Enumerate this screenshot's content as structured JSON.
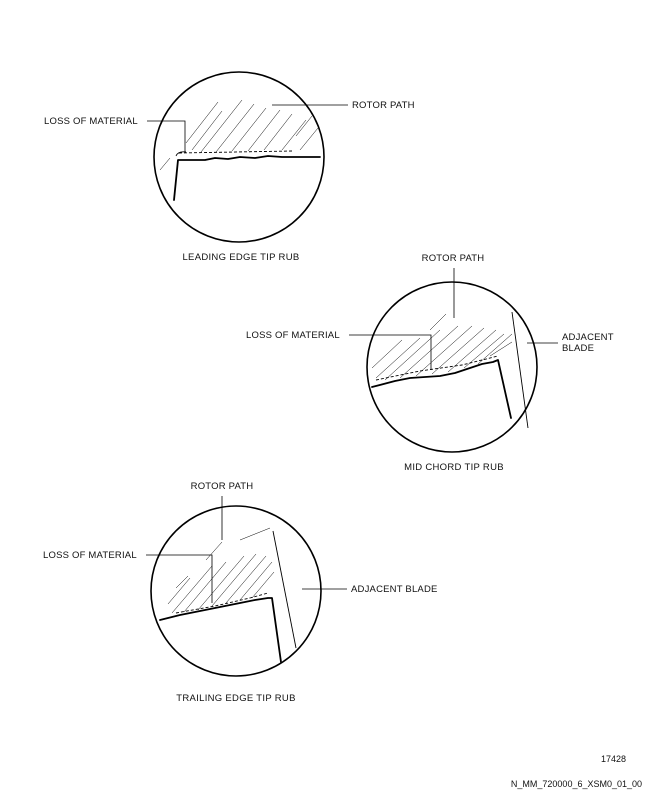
{
  "details": [
    {
      "caption": "LEADING EDGE TIP RUB",
      "labels": {
        "rotor_path": "ROTOR PATH",
        "loss_of_material": "LOSS OF MATERIAL"
      }
    },
    {
      "caption": "MID CHORD TIP RUB",
      "labels": {
        "rotor_path": "ROTOR PATH",
        "loss_of_material": "LOSS OF MATERIAL",
        "adjacent_blade_line1": "ADJACENT",
        "adjacent_blade_line2": "BLADE"
      }
    },
    {
      "caption": "TRAILING EDGE TIP RUB",
      "labels": {
        "rotor_path": "ROTOR PATH",
        "loss_of_material": "LOSS OF MATERIAL",
        "adjacent_blade": "ADJACENT BLADE"
      }
    }
  ],
  "figure_number": "17428",
  "drawing_id": "N_MM_720000_6_XSM0_01_00"
}
